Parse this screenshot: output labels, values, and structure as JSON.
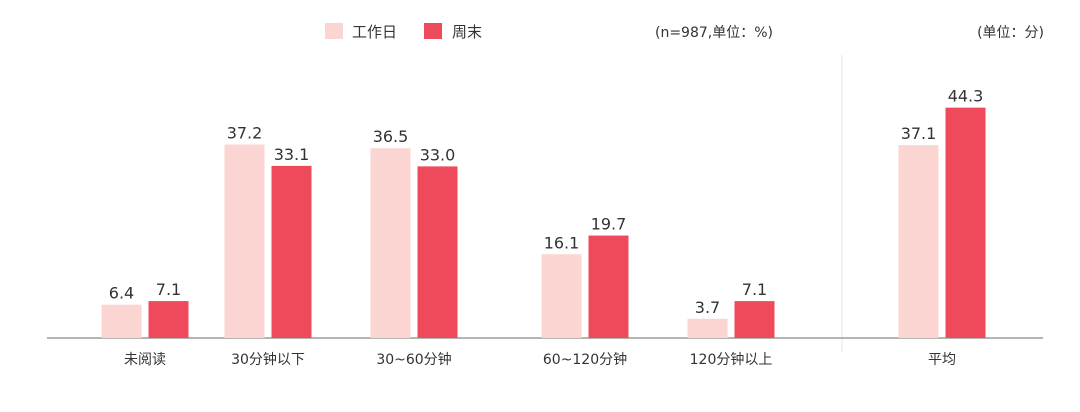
{
  "colors": {
    "weekday": "#fbd5d2",
    "weekend": "#ef4a5c",
    "axis": "#888888",
    "divider": "#e6e6e6",
    "text": "#333333"
  },
  "legend": {
    "weekday_label": "工作日",
    "weekend_label": "周末"
  },
  "notes": {
    "left_unit": "(n=987,单位：%)",
    "right_unit": "(单位：分)"
  },
  "chart_data": [
    {
      "type": "bar",
      "categories": [
        "未阅读",
        "30分钟以下",
        "30~60分钟",
        "60~120分钟",
        "120分钟以上"
      ],
      "series": [
        {
          "name": "工作日",
          "values": [
            6.4,
            37.2,
            36.5,
            16.1,
            3.7
          ]
        },
        {
          "name": "周末",
          "values": [
            7.1,
            33.1,
            33.0,
            19.7,
            7.1
          ]
        }
      ],
      "ylim": [
        0,
        50
      ],
      "grid": false,
      "legend_position": "top-left"
    },
    {
      "type": "bar",
      "categories": [
        "平均"
      ],
      "series": [
        {
          "name": "工作日",
          "values": [
            37.1
          ]
        },
        {
          "name": "周末",
          "values": [
            44.3
          ]
        }
      ],
      "ylim": [
        0,
        50
      ],
      "grid": false
    }
  ]
}
